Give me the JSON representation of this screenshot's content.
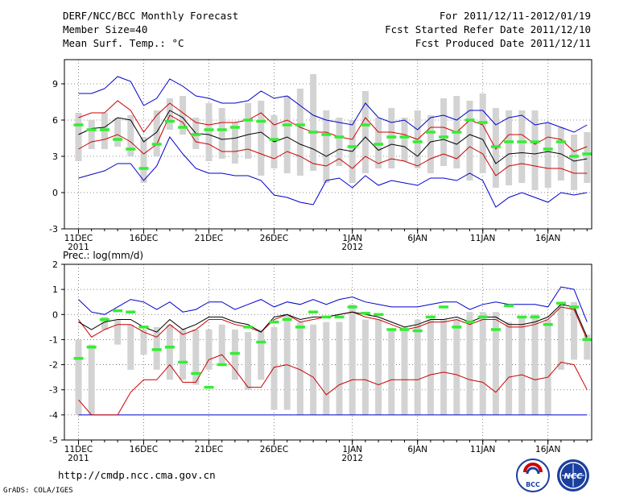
{
  "header": {
    "title": "DERF/NCC/BCC Monthly Forecast",
    "member_size": "Member Size=40",
    "variable": "Mean Surf. Temp.: °C",
    "period": "For 2011/12/11-2012/01/19",
    "started": "Fcst Started Refer Date 2011/12/10",
    "produced": "Fcst Produced Date 2011/12/11"
  },
  "footer": {
    "url": "http://cmdp.ncc.cma.gov.cn",
    "grads": "GrADS: COLA/IGES",
    "logo_bcc": "BCC",
    "logo_ncc": "NCC"
  },
  "colors": {
    "max_min": "#0000cc",
    "ens_range": "#cc0000",
    "mean": "#000000",
    "observed": "#33ee33",
    "box": "#d3d3d3",
    "grid": "#666666"
  },
  "chart_data": [
    {
      "type": "box",
      "title": "Mean Surf. Temp.: °C",
      "ylim": [
        -3,
        11
      ],
      "yticks": [
        "-3",
        "0",
        "3",
        "6",
        "9"
      ],
      "ytick_values": [
        -3,
        0,
        3,
        6,
        9
      ],
      "xticks": [
        {
          "day": 0,
          "label": "11DEC",
          "sub": "2011"
        },
        {
          "day": 5,
          "label": "16DEC",
          "sub": ""
        },
        {
          "day": 10,
          "label": "21DEC",
          "sub": ""
        },
        {
          "day": 15,
          "label": "26DEC",
          "sub": ""
        },
        {
          "day": 21,
          "label": "1JAN",
          "sub": "2012"
        },
        {
          "day": 26,
          "label": "6JAN",
          "sub": ""
        },
        {
          "day": 31,
          "label": "11JAN",
          "sub": ""
        },
        {
          "day": 36,
          "label": "16JAN",
          "sub": ""
        }
      ],
      "days": 40,
      "series": {
        "max": [
          8.2,
          8.2,
          8.6,
          9.6,
          9.2,
          7.2,
          7.8,
          9.4,
          8.8,
          8.0,
          7.8,
          7.4,
          7.4,
          7.6,
          8.4,
          7.8,
          8.0,
          7.2,
          6.4,
          6.0,
          5.8,
          5.6,
          7.4,
          6.2,
          5.8,
          6.0,
          5.2,
          6.2,
          6.4,
          6.0,
          6.8,
          6.8,
          5.6,
          6.2,
          6.4,
          5.6,
          5.8,
          5.4,
          5.0,
          5.6
        ],
        "ens_upper": [
          6.2,
          6.6,
          6.6,
          7.6,
          6.8,
          5.0,
          6.4,
          7.4,
          6.6,
          5.8,
          5.6,
          5.8,
          5.8,
          6.0,
          6.6,
          5.6,
          6.0,
          5.4,
          5.0,
          5.0,
          4.6,
          4.4,
          6.2,
          5.0,
          5.0,
          4.8,
          4.4,
          5.4,
          5.4,
          5.0,
          6.0,
          5.6,
          3.6,
          4.8,
          4.8,
          4.0,
          4.6,
          4.4,
          3.4,
          3.8
        ],
        "mean": [
          4.8,
          5.3,
          5.4,
          6.2,
          6.0,
          4.2,
          5.0,
          6.8,
          6.2,
          4.9,
          4.8,
          4.4,
          4.5,
          4.8,
          5.0,
          4.2,
          4.6,
          4.0,
          3.6,
          3.0,
          3.6,
          3.4,
          4.6,
          3.5,
          4.0,
          3.8,
          3.0,
          4.2,
          4.4,
          4.0,
          4.8,
          4.4,
          2.4,
          3.2,
          3.3,
          3.2,
          3.4,
          3.2,
          2.6,
          2.8
        ],
        "ens_lower": [
          3.6,
          4.2,
          4.4,
          4.8,
          4.2,
          3.2,
          4.0,
          6.4,
          5.8,
          4.2,
          4.0,
          3.4,
          3.4,
          3.6,
          3.2,
          2.8,
          3.4,
          3.0,
          2.4,
          2.2,
          2.8,
          2.0,
          3.0,
          2.4,
          2.8,
          2.6,
          2.2,
          2.8,
          3.2,
          2.8,
          3.8,
          3.2,
          1.4,
          2.2,
          2.4,
          2.2,
          2.0,
          2.0,
          1.6,
          1.6
        ],
        "min": [
          1.2,
          1.5,
          1.8,
          2.4,
          2.4,
          1.0,
          2.2,
          4.6,
          3.2,
          2.0,
          1.6,
          1.6,
          1.4,
          1.4,
          1.0,
          -0.2,
          -0.4,
          -0.8,
          -1.0,
          1.0,
          1.2,
          0.4,
          1.4,
          0.6,
          1.0,
          0.8,
          0.6,
          1.2,
          1.2,
          1.0,
          1.6,
          1.0,
          -1.2,
          -0.4,
          0.0,
          -0.4,
          -0.8,
          0.0,
          -0.2,
          0.0
        ],
        "box_high": [
          6.6,
          6.0,
          6.6,
          6.2,
          6.4,
          4.6,
          6.8,
          7.8,
          8.0,
          6.2,
          7.4,
          7.0,
          5.8,
          7.4,
          7.6,
          6.4,
          8.0,
          8.6,
          9.8,
          6.8,
          6.2,
          6.0,
          8.4,
          6.2,
          7.0,
          6.2,
          6.8,
          6.4,
          7.8,
          8.0,
          7.6,
          8.2,
          7.0,
          6.8,
          6.8,
          6.8,
          5.8,
          5.4,
          4.8,
          5.0
        ],
        "box_low": [
          2.6,
          3.6,
          3.6,
          3.8,
          3.0,
          0.8,
          3.0,
          5.2,
          4.8,
          3.6,
          2.6,
          2.8,
          2.4,
          2.8,
          1.4,
          2.0,
          1.6,
          1.4,
          1.8,
          0.8,
          2.2,
          0.8,
          1.6,
          2.0,
          2.0,
          2.6,
          2.0,
          1.6,
          2.2,
          2.0,
          1.0,
          1.6,
          0.4,
          0.6,
          0.8,
          0.2,
          0.4,
          1.0,
          0.2,
          0.8
        ],
        "observed": [
          5.6,
          5.2,
          5.2,
          4.4,
          3.6,
          2.0,
          4.0,
          5.9,
          5.4,
          4.8,
          5.2,
          5.2,
          5.4,
          6.0,
          5.9,
          4.4,
          5.6,
          5.6,
          5.0,
          4.8,
          4.6,
          3.8,
          5.6,
          4.0,
          4.6,
          4.6,
          4.2,
          5.0,
          4.6,
          5.0,
          6.0,
          5.8,
          3.8,
          4.2,
          4.2,
          4.2,
          3.6,
          4.2,
          3.0,
          3.2
        ]
      }
    },
    {
      "type": "box",
      "title": "Prec.: log(mm/d)",
      "ylim": [
        -5,
        2
      ],
      "yticks": [
        "-5",
        "-4",
        "-3",
        "-2",
        "-1",
        "0",
        "1",
        "2"
      ],
      "ytick_values": [
        -5,
        -4,
        -3,
        -2,
        -1,
        0,
        1,
        2
      ],
      "xticks": [
        {
          "day": 0,
          "label": "11DEC",
          "sub": "2011"
        },
        {
          "day": 5,
          "label": "16DEC",
          "sub": ""
        },
        {
          "day": 10,
          "label": "21DEC",
          "sub": ""
        },
        {
          "day": 15,
          "label": "26DEC",
          "sub": ""
        },
        {
          "day": 21,
          "label": "1JAN",
          "sub": "2012"
        },
        {
          "day": 26,
          "label": "6JAN",
          "sub": ""
        },
        {
          "day": 31,
          "label": "11JAN",
          "sub": ""
        },
        {
          "day": 36,
          "label": "16JAN",
          "sub": ""
        }
      ],
      "days": 40,
      "series": {
        "max": [
          0.6,
          0.1,
          0.0,
          0.3,
          0.6,
          0.5,
          0.2,
          0.5,
          0.1,
          0.2,
          0.5,
          0.5,
          0.2,
          0.4,
          0.6,
          0.3,
          0.5,
          0.4,
          0.6,
          0.4,
          0.6,
          0.7,
          0.5,
          0.4,
          0.3,
          0.3,
          0.3,
          0.4,
          0.5,
          0.5,
          0.2,
          0.4,
          0.5,
          0.4,
          0.4,
          0.4,
          0.3,
          1.1,
          1.0,
          -0.3
        ],
        "ens_upper": [
          -0.2,
          -0.9,
          -0.6,
          -0.4,
          -0.4,
          -0.7,
          -0.9,
          -0.4,
          -0.8,
          -0.6,
          -0.2,
          -0.2,
          -0.4,
          -0.5,
          -0.7,
          -0.2,
          0.0,
          -0.3,
          -0.2,
          -0.1,
          0.0,
          0.1,
          -0.1,
          -0.2,
          -0.4,
          -0.6,
          -0.5,
          -0.3,
          -0.3,
          -0.2,
          -0.4,
          -0.2,
          -0.2,
          -0.5,
          -0.5,
          -0.4,
          -0.2,
          0.3,
          0.2,
          -1.0
        ],
        "mean": [
          -0.3,
          -0.6,
          -0.3,
          -0.2,
          -0.2,
          -0.5,
          -0.7,
          -0.2,
          -0.6,
          -0.4,
          -0.1,
          -0.1,
          -0.3,
          -0.4,
          -0.7,
          -0.1,
          0.0,
          -0.2,
          -0.1,
          -0.1,
          0.0,
          0.1,
          0.0,
          -0.1,
          -0.3,
          -0.5,
          -0.4,
          -0.2,
          -0.2,
          -0.1,
          -0.3,
          -0.1,
          -0.1,
          -0.4,
          -0.4,
          -0.3,
          -0.1,
          0.4,
          0.3,
          -0.9
        ],
        "ens_lower": [
          -3.4,
          -4.0,
          -4.0,
          -4.0,
          -3.1,
          -2.6,
          -2.6,
          -2.0,
          -2.7,
          -2.7,
          -1.8,
          -1.6,
          -2.2,
          -2.9,
          -2.9,
          -2.1,
          -2.0,
          -2.2,
          -2.5,
          -3.2,
          -2.8,
          -2.6,
          -2.6,
          -2.8,
          -2.6,
          -2.6,
          -2.6,
          -2.4,
          -2.3,
          -2.4,
          -2.6,
          -2.7,
          -3.1,
          -2.5,
          -2.4,
          -2.6,
          -2.5,
          -1.9,
          -2.0,
          -3.0
        ],
        "min": [
          -4.0,
          -4.0,
          -4.0,
          -4.0,
          -4.0,
          -4.0,
          -4.0,
          -4.0,
          -4.0,
          -4.0,
          -4.0,
          -4.0,
          -4.0,
          -4.0,
          -4.0,
          -4.0,
          -4.0,
          -4.0,
          -4.0,
          -4.0,
          -4.0,
          -4.0,
          -4.0,
          -4.0,
          -4.0,
          -4.0,
          -4.0,
          -4.0,
          -4.0,
          -4.0,
          -4.0,
          -4.0,
          -4.0,
          -4.0,
          -4.0,
          -4.0,
          -4.0,
          -4.0,
          -4.0,
          -4.0
        ],
        "box_high": [
          -1.0,
          -1.2,
          -0.1,
          -0.2,
          -0.4,
          -0.6,
          -0.5,
          -0.4,
          -0.6,
          -0.6,
          -0.6,
          -0.4,
          -0.6,
          -0.7,
          -0.6,
          -0.5,
          0.0,
          -0.3,
          -0.4,
          -0.3,
          -0.3,
          0.4,
          -0.2,
          -0.2,
          -0.6,
          -0.5,
          -0.2,
          -0.2,
          -0.2,
          -0.2,
          0.1,
          0.1,
          0.1,
          -0.3,
          -0.1,
          0.0,
          -0.2,
          0.5,
          0.5,
          -0.8
        ],
        "box_low": [
          -4.0,
          -4.0,
          -0.6,
          -1.2,
          -2.2,
          -1.6,
          -2.2,
          -2.6,
          -2.6,
          -2.8,
          -2.2,
          -2.0,
          -2.6,
          -3.0,
          -2.6,
          -3.8,
          -3.8,
          -4.0,
          -4.0,
          -4.0,
          -4.0,
          -4.0,
          -4.0,
          -4.0,
          -4.0,
          -4.0,
          -4.0,
          -4.0,
          -4.0,
          -4.0,
          -4.0,
          -4.0,
          -4.0,
          -4.0,
          -4.0,
          -4.0,
          -4.0,
          -2.2,
          -1.8,
          -1.8
        ],
        "observed": [
          -1.75,
          -1.3,
          -0.2,
          0.15,
          0.1,
          -0.5,
          -1.4,
          -1.3,
          -1.9,
          -2.35,
          -2.9,
          -2.0,
          -1.55,
          -0.5,
          -1.1,
          -0.3,
          -0.2,
          -0.5,
          0.1,
          -0.1,
          -0.1,
          0.3,
          0.05,
          0.0,
          -0.6,
          -0.6,
          -0.65,
          -0.1,
          0.3,
          -0.5,
          -0.3,
          -0.1,
          -0.6,
          0.35,
          -0.1,
          -0.1,
          -0.4,
          0.45,
          0.3,
          -1.0
        ]
      }
    }
  ]
}
